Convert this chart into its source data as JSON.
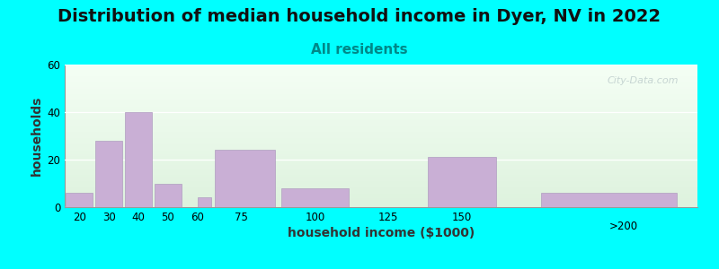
{
  "title": "Distribution of median household income in Dyer, NV in 2022",
  "subtitle": "All residents",
  "xlabel": "household income ($1000)",
  "ylabel": "households",
  "background_color": "#00FFFF",
  "bar_color": "#c9afd5",
  "bar_edge_color": "#b09ec0",
  "bar_linewidth": 0.5,
  "bins_left": [
    15,
    25,
    35,
    45,
    60,
    65,
    87.5,
    112.5,
    137.5,
    175
  ],
  "bin_widths": [
    10,
    10,
    10,
    10,
    5,
    22.5,
    25,
    25,
    25,
    50
  ],
  "values": [
    6,
    28,
    40,
    10,
    4,
    24,
    8,
    0,
    21,
    6
  ],
  "xtick_positions": [
    20,
    30,
    40,
    50,
    60,
    75,
    100,
    125,
    150
  ],
  "xtick_labels": [
    "20",
    "30",
    "40",
    "50",
    "60",
    "75",
    "100",
    "125",
    "150"
  ],
  "xlim": [
    15,
    230
  ],
  "ylim": [
    0,
    60
  ],
  "yticks": [
    0,
    20,
    40,
    60
  ],
  "title_fontsize": 14,
  "subtitle_fontsize": 11,
  "axis_label_fontsize": 10,
  "watermark_text": "City-Data.com"
}
